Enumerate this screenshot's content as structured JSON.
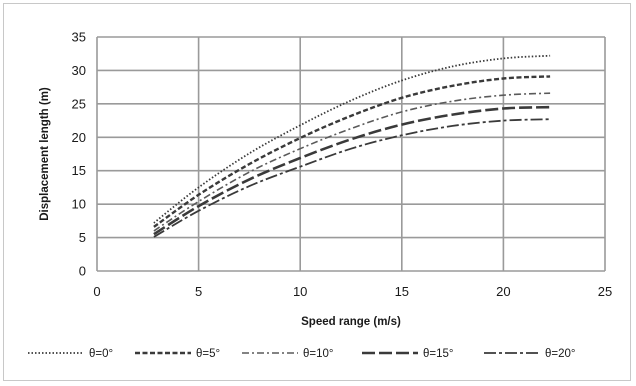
{
  "chart_data": {
    "type": "line",
    "title": "",
    "xlabel": "Speed range (m/s)",
    "ylabel": "Displacement length (m)",
    "xlim": [
      0,
      25
    ],
    "ylim": [
      0,
      35
    ],
    "xticks": [
      0,
      5,
      10,
      15,
      20,
      25
    ],
    "yticks": [
      0,
      5,
      10,
      15,
      20,
      25,
      30,
      35
    ],
    "grid": true,
    "legend_position": "bottom",
    "series": [
      {
        "name": "θ=0°",
        "style": "dotted",
        "color": "#3a3a3a",
        "points": [
          [
            2.8,
            7.2
          ],
          [
            5,
            12.5
          ],
          [
            7.5,
            17.6
          ],
          [
            10,
            21.8
          ],
          [
            12.5,
            25.5
          ],
          [
            15,
            28.5
          ],
          [
            17.5,
            30.6
          ],
          [
            20,
            31.8
          ],
          [
            22.3,
            32.2
          ]
        ]
      },
      {
        "name": "θ=5°",
        "style": "short-dash",
        "color": "#3a3a3a",
        "points": [
          [
            2.8,
            6.6
          ],
          [
            5,
            11.4
          ],
          [
            7.5,
            16.0
          ],
          [
            10,
            19.9
          ],
          [
            12.5,
            23.2
          ],
          [
            15,
            25.9
          ],
          [
            17.5,
            27.7
          ],
          [
            20,
            28.8
          ],
          [
            22.3,
            29.1
          ]
        ]
      },
      {
        "name": "θ=10°",
        "style": "dash-dot",
        "color": "#5a5a5a",
        "points": [
          [
            2.8,
            6.0
          ],
          [
            5,
            10.4
          ],
          [
            7.5,
            14.8
          ],
          [
            10,
            18.3
          ],
          [
            12.5,
            21.3
          ],
          [
            15,
            23.8
          ],
          [
            17.5,
            25.4
          ],
          [
            20,
            26.3
          ],
          [
            22.3,
            26.6
          ]
        ]
      },
      {
        "name": "θ=15°",
        "style": "long-dash",
        "color": "#3a3a3a",
        "points": [
          [
            2.8,
            5.5
          ],
          [
            5,
            9.7
          ],
          [
            7.5,
            13.7
          ],
          [
            10,
            16.9
          ],
          [
            12.5,
            19.7
          ],
          [
            15,
            21.9
          ],
          [
            17.5,
            23.4
          ],
          [
            20,
            24.3
          ],
          [
            22.3,
            24.5
          ]
        ]
      },
      {
        "name": "θ=20°",
        "style": "long-dash-dot",
        "color": "#3a3a3a",
        "points": [
          [
            2.8,
            5.1
          ],
          [
            5,
            9.0
          ],
          [
            7.5,
            12.7
          ],
          [
            10,
            15.6
          ],
          [
            12.5,
            18.3
          ],
          [
            15,
            20.3
          ],
          [
            17.5,
            21.7
          ],
          [
            20,
            22.5
          ],
          [
            22.3,
            22.7
          ]
        ]
      }
    ]
  }
}
